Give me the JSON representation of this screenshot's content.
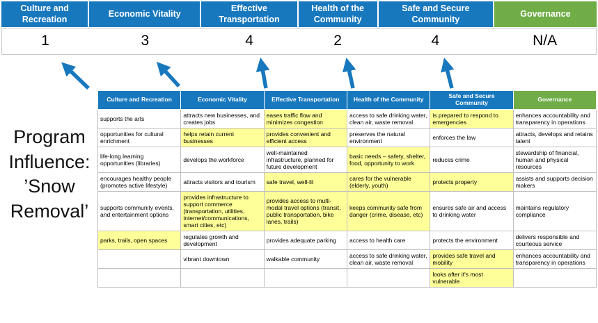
{
  "title": "Program Influence: ’Snow Removal’",
  "colors": {
    "header_blue": "#1878be",
    "header_green": "#70ad47",
    "highlight_yellow": "#ffff99",
    "arrow_blue": "#1878be",
    "table_border": "#bfbfbf"
  },
  "icons": {
    "score_arrow": "up-arrow"
  },
  "summary": {
    "columns": [
      {
        "label": "Culture and Recreation",
        "score": "1",
        "color": "blue"
      },
      {
        "label": "Economic Vitality",
        "score": "3",
        "color": "blue"
      },
      {
        "label": "Effective Transportation",
        "score": "4",
        "color": "blue"
      },
      {
        "label": "Health of the Community",
        "score": "2",
        "color": "blue"
      },
      {
        "label": "Safe and Secure Community",
        "score": "4",
        "color": "blue"
      },
      {
        "label": "Governance",
        "score": "N/A",
        "color": "green"
      }
    ]
  },
  "matrix": {
    "headers": [
      {
        "label": "Culture and Recreation",
        "color": "blue"
      },
      {
        "label": "Economic Vitality",
        "color": "blue"
      },
      {
        "label": "Effective Transportation",
        "color": "blue"
      },
      {
        "label": "Health of the Community",
        "color": "blue"
      },
      {
        "label": "Safe and Secure Community",
        "color": "blue"
      },
      {
        "label": "Governance",
        "color": "green"
      }
    ],
    "rows": [
      [
        {
          "text": "supports the arts",
          "hl": false
        },
        {
          "text": "attracts new businesses, and creates jobs",
          "hl": false
        },
        {
          "text": "eases traffic flow and minimizes congestion",
          "hl": true
        },
        {
          "text": "access to safe drinking water, clean air, waste removal",
          "hl": false
        },
        {
          "text": "is prepared to respond to emergencies",
          "hl": true
        },
        {
          "text": "enhances accountability and transparency in operations",
          "hl": false
        }
      ],
      [
        {
          "text": "opportunities for cultural enrichment",
          "hl": false
        },
        {
          "text": "helps retain current businesses",
          "hl": true
        },
        {
          "text": "provides convenient and efficient access",
          "hl": true
        },
        {
          "text": "preserves the natural environment",
          "hl": false
        },
        {
          "text": "enforces the law",
          "hl": false
        },
        {
          "text": "attracts, develops and retains talent",
          "hl": false
        }
      ],
      [
        {
          "text": "life-long learning opportunities (libraries)",
          "hl": false
        },
        {
          "text": "develops the workforce",
          "hl": false
        },
        {
          "text": "well-maintained infrastructure, planned for future development",
          "hl": false
        },
        {
          "text": "basic needs – safety, shelter, food, opportunity to work",
          "hl": true
        },
        {
          "text": "reduces crime",
          "hl": false
        },
        {
          "text": "stewardship of financial, human and physical resources",
          "hl": false
        }
      ],
      [
        {
          "text": "encourages healthy people (promotes active lifestyle)",
          "hl": false
        },
        {
          "text": "attracts visitors and tourism",
          "hl": false
        },
        {
          "text": "safe travel, well-lit",
          "hl": true
        },
        {
          "text": "cares for the vulnerable (elderly, youth)",
          "hl": true
        },
        {
          "text": "protects property",
          "hl": true
        },
        {
          "text": "assists and supports decision makers",
          "hl": false
        }
      ],
      [
        {
          "text": "supports community events, and entertainment options",
          "hl": false
        },
        {
          "text": "provides infrastructure to support commerce (transportation, utilities, internet/communications, smart cities, etc)",
          "hl": true
        },
        {
          "text": "provides access to multi-modal travel options (transit, public transportation, bike lanes, trails)",
          "hl": true
        },
        {
          "text": "keeps community safe from danger (crime, disease, etc)",
          "hl": true
        },
        {
          "text": "ensures safe air and access to drinking water",
          "hl": false
        },
        {
          "text": "maintains regulatory compliance",
          "hl": false
        }
      ],
      [
        {
          "text": "parks, trails, open spaces",
          "hl": true
        },
        {
          "text": "regulates growth and development",
          "hl": false
        },
        {
          "text": "provides adequate parking",
          "hl": false
        },
        {
          "text": "access to health care",
          "hl": false
        },
        {
          "text": "protects the environment",
          "hl": false
        },
        {
          "text": "delivers responsible and courteous service",
          "hl": false
        }
      ],
      [
        {
          "text": "",
          "hl": false
        },
        {
          "text": "vibrant downtown",
          "hl": false
        },
        {
          "text": "walkable community",
          "hl": false
        },
        {
          "text": "access to safe drinking water, clean air, waste removal",
          "hl": false
        },
        {
          "text": "provides safe travel and mobility",
          "hl": true
        },
        {
          "text": "enhances accountability and transparency in operations",
          "hl": false
        }
      ],
      [
        {
          "text": "",
          "hl": false
        },
        {
          "text": "",
          "hl": false
        },
        {
          "text": "",
          "hl": false
        },
        {
          "text": "",
          "hl": false
        },
        {
          "text": "looks after it's most vulnerable",
          "hl": true
        },
        {
          "text": "",
          "hl": false
        }
      ]
    ]
  }
}
